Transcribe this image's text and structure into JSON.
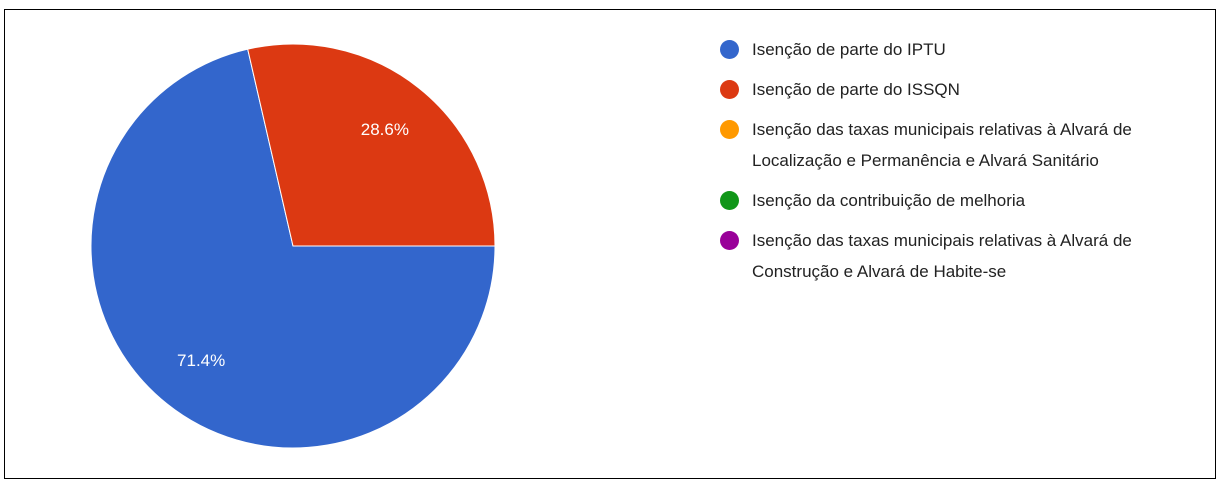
{
  "chart_data": {
    "type": "pie",
    "categories": [
      "Isenção de parte do IPTU",
      "Isenção de parte do ISSQN",
      "Isenção das taxas municipais relativas à Alvará de Localização e Permanência e Alvará Sanitário",
      "Isenção da contribuição de melhoria",
      "Isenção das taxas municipais relativas à Alvará de Construção e Alvará de Habite-se"
    ],
    "values": [
      71.4,
      28.6,
      0,
      0,
      0
    ],
    "value_labels": [
      "71.4%",
      "28.6%",
      null,
      null,
      null
    ],
    "colors": [
      "#3366cc",
      "#dc3912",
      "#ff9900",
      "#109618",
      "#990099"
    ],
    "legend": "right"
  }
}
